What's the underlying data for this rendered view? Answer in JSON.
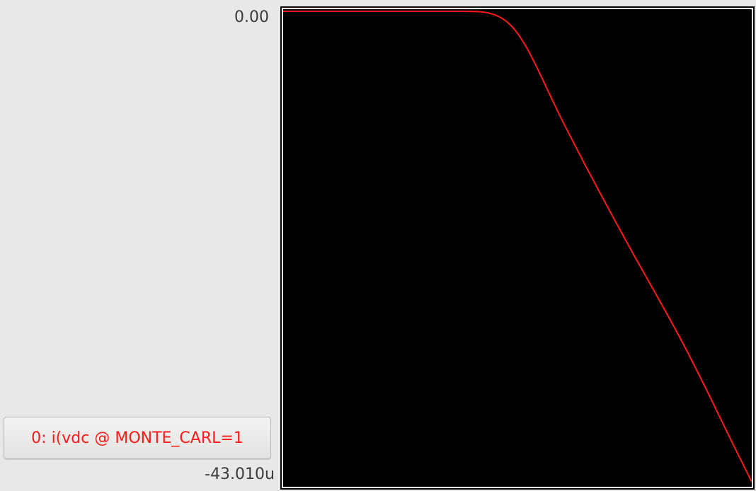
{
  "axis": {
    "y_top_label": "0.00",
    "y_bottom_label": "-43.010u"
  },
  "trace": {
    "button_label": "0: i(vdc @ MONTE_CARL=1",
    "color": "#ff1a1a"
  },
  "plot": {
    "background": "#000000"
  },
  "chart_data": {
    "type": "line",
    "title": "",
    "xlabel": "",
    "ylabel": "",
    "ylim": [
      -43.01,
      0.0
    ],
    "y_unit": "u",
    "xlim": [
      0,
      1
    ],
    "grid": false,
    "legend_placement": "bottom-left",
    "series": [
      {
        "name": "0: i(vdc @ MONTE_CARL=1",
        "color": "#ff1a1a",
        "x": [
          0.0,
          0.1,
          0.2,
          0.3,
          0.35,
          0.4,
          0.42,
          0.44,
          0.46,
          0.48,
          0.5,
          0.52,
          0.54,
          0.56,
          0.58,
          0.6,
          0.65,
          0.7,
          0.75,
          0.8,
          0.85,
          0.9,
          0.95,
          1.0
        ],
        "values": [
          0.0,
          0.0,
          0.0,
          0.0,
          0.0,
          -0.01,
          -0.04,
          -0.17,
          -0.48,
          -1.05,
          -2.0,
          -3.35,
          -5.0,
          -6.8,
          -8.6,
          -10.35,
          -14.5,
          -18.5,
          -22.4,
          -26.2,
          -30.1,
          -34.3,
          -38.7,
          -43.01
        ]
      }
    ]
  }
}
